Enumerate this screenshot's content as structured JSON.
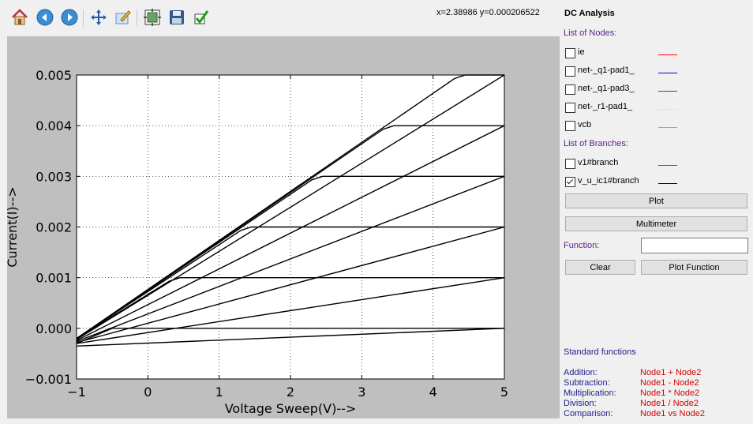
{
  "toolbar": {
    "buttons": [
      {
        "name": "home-button",
        "icon": "home-icon",
        "tooltip": "Home"
      },
      {
        "name": "back-button",
        "icon": "arrow-left-icon",
        "tooltip": "Back"
      },
      {
        "name": "forward-button",
        "icon": "arrow-right-icon",
        "tooltip": "Forward"
      },
      {
        "name": "pan-button",
        "icon": "move-icon",
        "tooltip": "Pan"
      },
      {
        "name": "edit-axes-button",
        "icon": "edit-icon",
        "tooltip": "Edit"
      },
      {
        "name": "configure-subplots-button",
        "icon": "subplots-icon",
        "tooltip": "Configure"
      },
      {
        "name": "save-button",
        "icon": "save-icon",
        "tooltip": "Save"
      },
      {
        "name": "apply-button",
        "icon": "check-icon",
        "tooltip": "Apply"
      }
    ],
    "coords": "x=2.38986     y=0.000206522"
  },
  "panel": {
    "title": "DC Analysis",
    "nodes_label": "List of Nodes:",
    "nodes": [
      {
        "label": "ie",
        "checked": false,
        "color": "#ff0000"
      },
      {
        "label": "net-_q1-pad1_",
        "checked": false,
        "color": "#0000cc"
      },
      {
        "label": "net-_q1-pad3_",
        "checked": false,
        "color": "#008000"
      },
      {
        "label": "net-_r1-pad1_",
        "checked": false,
        "color": "#ffff00"
      },
      {
        "label": "vcb",
        "checked": false,
        "color": "#00e5ff"
      }
    ],
    "branches_label": "List of Branches:",
    "branches": [
      {
        "label": "v1#branch",
        "checked": false,
        "color": "#e600e6"
      },
      {
        "label": "v_u_ic1#branch",
        "checked": true,
        "color": "#000000"
      }
    ],
    "plot_button": "Plot",
    "multimeter_button": "Multimeter",
    "function_label": "Function:",
    "function_value": "",
    "clear_button": "Clear",
    "plot_function_button": "Plot Function",
    "std_title": "Standard functions",
    "std_functions": [
      {
        "name": "Addition:",
        "expr": "Node1 + Node2"
      },
      {
        "name": "Subtraction:",
        "expr": "Node1 - Node2"
      },
      {
        "name": "Multiplication:",
        "expr": "Node1 * Node2"
      },
      {
        "name": "Division:",
        "expr": "Node1 / Node2"
      },
      {
        "name": "Comparison:",
        "expr": "Node1 vs Node2"
      }
    ]
  },
  "chart_data": {
    "type": "line",
    "xlabel": "Voltage Sweep(V)-->",
    "ylabel": "Current(I)-->",
    "xlim": [
      -1,
      5
    ],
    "ylim": [
      -0.001,
      0.005
    ],
    "xticks": [
      "−1",
      "0",
      "1",
      "2",
      "3",
      "4",
      "5"
    ],
    "yticks": [
      "−0.001",
      "0.000",
      "0.001",
      "0.002",
      "0.003",
      "0.004",
      "0.005"
    ],
    "grid": true,
    "series": [
      {
        "x": [
          -1,
          -0.5,
          5
        ],
        "y": [
          -0.0003,
          0.0,
          0.0
        ]
      },
      {
        "x": [
          -1,
          5
        ],
        "y": [
          -0.00035,
          0.0
        ]
      },
      {
        "x": [
          -1,
          5
        ],
        "y": [
          -0.0003,
          0.001
        ]
      },
      {
        "x": [
          -1,
          5
        ],
        "y": [
          -0.00028,
          0.002
        ]
      },
      {
        "x": [
          -1,
          5
        ],
        "y": [
          -0.00026,
          0.003
        ]
      },
      {
        "x": [
          -1,
          5
        ],
        "y": [
          -0.00024,
          0.004
        ]
      },
      {
        "x": [
          -1,
          5
        ],
        "y": [
          -0.00022,
          0.005
        ]
      },
      {
        "x": [
          -1,
          0.3,
          0.45,
          5
        ],
        "y": [
          -0.0002,
          0.00093,
          0.001,
          0.001
        ]
      },
      {
        "x": [
          -1,
          1.3,
          1.45,
          5
        ],
        "y": [
          -0.0002,
          0.00193,
          0.002,
          0.002
        ]
      },
      {
        "x": [
          -1,
          2.3,
          2.45,
          5
        ],
        "y": [
          -0.0002,
          0.00293,
          0.003,
          0.003
        ]
      },
      {
        "x": [
          -1,
          3.3,
          3.45,
          5
        ],
        "y": [
          -0.0002,
          0.00393,
          0.004,
          0.004
        ]
      },
      {
        "x": [
          -1,
          4.3,
          4.45,
          5
        ],
        "y": [
          -0.0002,
          0.00493,
          0.005,
          0.005
        ]
      }
    ]
  }
}
